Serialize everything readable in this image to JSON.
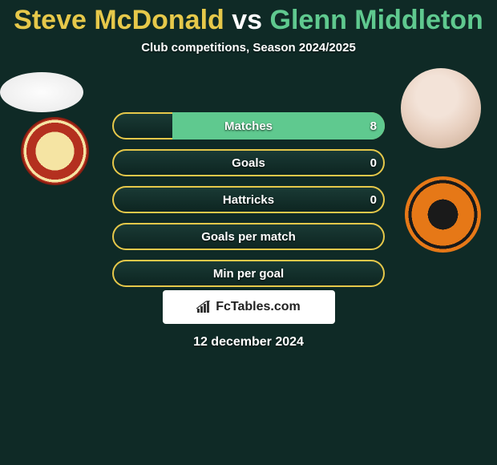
{
  "title": "Steve McDonald vs Glenn Middleton",
  "title_colors": {
    "player1": "#e6c84a",
    "vs": "#ffffff",
    "player2": "#5fc98f"
  },
  "subtitle": "Club competitions, Season 2024/2025",
  "bars": [
    {
      "label": "Matches",
      "left": "",
      "right": "8",
      "left_pct": 0,
      "right_pct": 78,
      "right_color": "#5fc98f"
    },
    {
      "label": "Goals",
      "left": "",
      "right": "0",
      "left_pct": 0,
      "right_pct": 0
    },
    {
      "label": "Hattricks",
      "left": "",
      "right": "0",
      "left_pct": 0,
      "right_pct": 0
    },
    {
      "label": "Goals per match",
      "left": "",
      "right": "",
      "left_pct": 0,
      "right_pct": 0
    },
    {
      "label": "Min per goal",
      "left": "",
      "right": "",
      "left_pct": 0,
      "right_pct": 0
    }
  ],
  "branding": "FcTables.com",
  "date": "12 december 2024",
  "style": {
    "bg": "#0f2a26",
    "bar_border": "#e6c84a",
    "bar_fill_right": "#5fc98f",
    "bar_fill_left": "#e6c84a",
    "text_shadow": "rgba(0,0,0,.8)"
  }
}
